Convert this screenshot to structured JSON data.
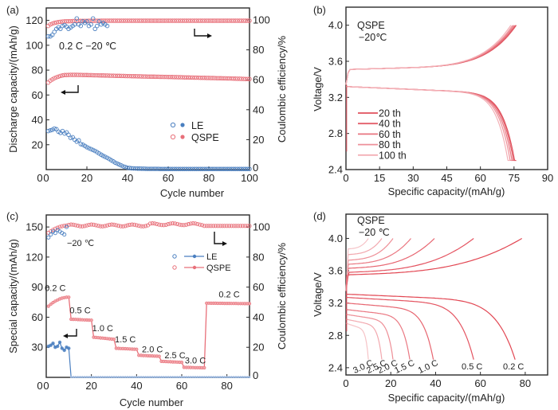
{
  "colors": {
    "le": "#4a7fc0",
    "qspe": "#e8707a",
    "qspe_light": "#f2a5aa",
    "axis": "#2a2a2a"
  },
  "chart_data": [
    {
      "panel": "(a)",
      "type": "scatter",
      "xlabel": "Cycle number",
      "ylabel": "Discharge capacity/(mAh/g)",
      "y2label": "Coulombic efficiency/%",
      "xlim": [
        0,
        100
      ],
      "ylim": [
        0,
        130
      ],
      "y2lim": [
        0,
        108
      ],
      "xticks": [
        0,
        20,
        40,
        60,
        80,
        100
      ],
      "yticks": [
        20,
        40,
        60,
        80,
        100,
        120
      ],
      "y2ticks": [
        0,
        20,
        40,
        60,
        80,
        100
      ],
      "annotation": "0.2 C  −20 ℃",
      "legend": {
        "position": "center-right",
        "entries": [
          "LE",
          "QSPE"
        ]
      },
      "series": [
        {
          "name": "QSPE capacity",
          "axis": "left",
          "x": [
            1,
            2,
            3,
            4,
            5,
            6,
            7,
            8,
            9,
            10,
            12,
            15,
            18,
            20,
            25,
            30,
            40,
            50,
            60,
            70,
            80,
            90,
            100
          ],
          "y": [
            70,
            71.5,
            72.5,
            73.5,
            74.2,
            74.8,
            75.3,
            75.7,
            76,
            76.1,
            76.2,
            76.2,
            76.1,
            76,
            75.8,
            75.6,
            75.2,
            74.8,
            74.5,
            74.1,
            73.7,
            73.3,
            72.8
          ]
        },
        {
          "name": "QSPE CE",
          "axis": "right",
          "x": [
            1,
            2,
            3,
            4,
            5,
            6,
            8,
            10,
            15,
            20,
            30,
            40,
            60,
            80,
            100
          ],
          "y": [
            96,
            97,
            97.5,
            98,
            98.3,
            98.6,
            98.9,
            99.1,
            99.3,
            99.4,
            99.5,
            99.5,
            99.5,
            99.5,
            99.5
          ]
        },
        {
          "name": "LE capacity",
          "axis": "left",
          "x": [
            1,
            2,
            3,
            4,
            5,
            6,
            7,
            8,
            9,
            10,
            11,
            12,
            13,
            14,
            15,
            16,
            17,
            18,
            19,
            20,
            22,
            24,
            26,
            28,
            30,
            32,
            34,
            36,
            38,
            40,
            42,
            45,
            50,
            60,
            70,
            80,
            90,
            100
          ],
          "y": [
            31,
            31.5,
            32,
            33,
            32.5,
            30.5,
            29.5,
            31,
            29,
            30,
            28,
            25.5,
            26,
            24,
            22.5,
            23.5,
            20.5,
            20,
            19,
            18,
            16.5,
            15,
            13,
            11,
            9.5,
            7.5,
            5.5,
            4,
            2.5,
            1.5,
            1,
            0.8,
            0.6,
            0.5,
            0.5,
            0.5,
            0.5,
            0.5
          ]
        },
        {
          "name": "LE CE",
          "axis": "right",
          "x": [
            1,
            2,
            3,
            4,
            5,
            6,
            7,
            8,
            9,
            10,
            11,
            12,
            13,
            14,
            15,
            16,
            17,
            18,
            19,
            20,
            21,
            22,
            23,
            24,
            25,
            26,
            27,
            28,
            29,
            30
          ],
          "y": [
            89,
            89,
            90,
            92,
            94,
            95,
            94,
            96,
            96.5,
            95.5,
            94,
            95,
            96,
            97,
            101,
            97,
            96,
            99,
            98,
            99,
            96,
            97,
            101,
            94,
            96,
            99,
            97,
            98,
            97,
            96
          ]
        }
      ]
    },
    {
      "panel": "(b)",
      "type": "line",
      "xlabel": "Specific capacity/(mAh/g)",
      "ylabel": "Voltage/V",
      "xlim": [
        0,
        90
      ],
      "ylim": [
        2.4,
        4.2
      ],
      "xticks": [
        0,
        15,
        30,
        45,
        60,
        75,
        90
      ],
      "yticks": [
        2.4,
        2.8,
        3.2,
        3.6,
        4.0
      ],
      "annotation": [
        "QSPE",
        "−20℃"
      ],
      "legend": {
        "position": "bottom-left",
        "entries": [
          "20 th",
          "40 th",
          "60 th",
          "80 th",
          "100 th"
        ]
      },
      "series": [
        {
          "name": "20 th",
          "charge_end": 76.0,
          "discharge_end": 76.0
        },
        {
          "name": "40 th",
          "charge_end": 75.6,
          "discharge_end": 75.5
        },
        {
          "name": "60 th",
          "charge_end": 75.0,
          "discharge_end": 74.8
        },
        {
          "name": "80 th",
          "charge_end": 74.4,
          "discharge_end": 74.0
        },
        {
          "name": "100 th",
          "charge_end": 73.6,
          "discharge_end": 73.0
        }
      ]
    },
    {
      "panel": "(c)",
      "type": "scatter",
      "xlabel": "Cycle number",
      "ylabel": "Special capacity/(mAh/g)",
      "y2label": "Coulombic efficiency/%",
      "xlim": [
        0,
        90
      ],
      "ylim": [
        0,
        162
      ],
      "y2lim": [
        0,
        108
      ],
      "xticks": [
        0,
        20,
        40,
        60,
        80
      ],
      "yticks": [
        30,
        60,
        90,
        120,
        150
      ],
      "y2ticks": [
        0,
        20,
        40,
        60,
        80,
        100
      ],
      "annotation": "−20 ℃",
      "legend": {
        "position": "top-right",
        "entries": [
          "LE",
          "QSPE"
        ]
      },
      "rate_labels": [
        {
          "label": "0.2 C",
          "x": 4,
          "y": 86
        },
        {
          "label": "0.5 C",
          "x": 15,
          "y": 64
        },
        {
          "label": "1.0 C",
          "x": 25,
          "y": 46
        },
        {
          "label": "1.5 C",
          "x": 35,
          "y": 35
        },
        {
          "label": "2.0 C",
          "x": 47,
          "y": 25
        },
        {
          "label": "2.5 C",
          "x": 57,
          "y": 19
        },
        {
          "label": "3.0 C",
          "x": 66,
          "y": 14
        },
        {
          "label": "0.2 C",
          "x": 81,
          "y": 80
        }
      ],
      "qspe_steps": [
        {
          "rate": "0.2 C",
          "cycles": [
            1,
            10
          ],
          "capacity_start": 71,
          "capacity_end": 80
        },
        {
          "rate": "0.5 C",
          "cycles": [
            11,
            20
          ],
          "capacity_start": 58,
          "capacity_end": 57
        },
        {
          "rate": "1.0 C",
          "cycles": [
            21,
            30
          ],
          "capacity_start": 40,
          "capacity_end": 38
        },
        {
          "rate": "1.5 C",
          "cycles": [
            31,
            40
          ],
          "capacity_start": 29,
          "capacity_end": 28
        },
        {
          "rate": "2.0 C",
          "cycles": [
            41,
            50
          ],
          "capacity_start": 22,
          "capacity_end": 21
        },
        {
          "rate": "2.5 C",
          "cycles": [
            51,
            60
          ],
          "capacity_start": 16,
          "capacity_end": 15
        },
        {
          "rate": "3.0 C",
          "cycles": [
            61,
            70
          ],
          "capacity_start": 10,
          "capacity_end": 9.5
        },
        {
          "rate": "0.2 C",
          "cycles": [
            71,
            90
          ],
          "capacity_start": 74,
          "capacity_end": 73.5
        }
      ],
      "le_capacity": {
        "x": [
          1,
          2,
          3,
          4,
          5,
          6,
          7,
          8,
          9,
          10,
          11,
          90
        ],
        "y": [
          31,
          32,
          34,
          30,
          31,
          35,
          29,
          27,
          30,
          29,
          0,
          0
        ]
      },
      "le_ce": {
        "x": [
          1,
          2,
          3,
          4,
          5,
          6,
          7,
          8,
          9
        ],
        "y": [
          93,
          95,
          97,
          96,
          98,
          97,
          96,
          95,
          100
        ]
      },
      "qspe_ce": {
        "x_start": 1,
        "x_end": 90,
        "values_start": 95,
        "plateau": 101
      }
    },
    {
      "panel": "(d)",
      "type": "line",
      "xlabel": "Specific capacity/(mAh/g)",
      "ylabel": "Voltage/V",
      "xlim": [
        0,
        90
      ],
      "ylim": [
        2.31,
        4.3
      ],
      "xticks": [
        0,
        20,
        40,
        60,
        80
      ],
      "yticks": [
        2.4,
        2.8,
        3.2,
        3.6,
        4.0
      ],
      "annotation": [
        "QSPE",
        "−20 ℃"
      ],
      "series": [
        {
          "name": "0.2 C",
          "charge_end": 78.5,
          "discharge_end": 75.5,
          "charge_plateau": 3.55,
          "discharge_plateau": 3.31
        },
        {
          "name": "0.5 C",
          "charge_end": 57,
          "discharge_end": 57,
          "charge_plateau": 3.58,
          "discharge_plateau": 3.27
        },
        {
          "name": "1.0 C",
          "charge_end": 39.5,
          "discharge_end": 39,
          "charge_plateau": 3.63,
          "discharge_plateau": 3.2
        },
        {
          "name": "1.5 C",
          "charge_end": 29,
          "discharge_end": 28.5,
          "charge_plateau": 3.68,
          "discharge_plateau": 3.12
        },
        {
          "name": "2.0 C",
          "charge_end": 21,
          "discharge_end": 21,
          "charge_plateau": 3.73,
          "discharge_plateau": 3.06
        },
        {
          "name": "2.5 C",
          "charge_end": 16,
          "discharge_end": 16,
          "charge_plateau": 3.8,
          "discharge_plateau": 3.0
        },
        {
          "name": "3.0 C",
          "charge_end": 10,
          "discharge_end": 10,
          "charge_plateau": 3.87,
          "discharge_plateau": 2.95
        }
      ]
    }
  ],
  "panels": {
    "a": {
      "label": "(a)",
      "xlabel": "Cycle number",
      "ylabel": "Discharge capacity/(mAh/g)",
      "y2label": "Coulombic efficiency/%",
      "annotation": "0.2 C  −20 ℃",
      "legend_le": "LE",
      "legend_qspe": "QSPE"
    },
    "b": {
      "label": "(b)",
      "xlabel": "Specific capacity/(mAh/g)",
      "ylabel": "Voltage/V",
      "anno1": "QSPE",
      "anno2": "−20℃"
    },
    "c": {
      "label": "(c)",
      "xlabel": "Cycle number",
      "ylabel": "Special capacity/(mAh/g)",
      "y2label": "Coulombic efficiency/%",
      "annotation": "−20 ℃",
      "legend_le": "LE",
      "legend_qspe": "QSPE"
    },
    "d": {
      "label": "(d)",
      "xlabel": "Specific capacity/(mAh/g)",
      "ylabel": "Voltage/V",
      "anno1": "QSPE",
      "anno2": "−20 ℃"
    }
  }
}
